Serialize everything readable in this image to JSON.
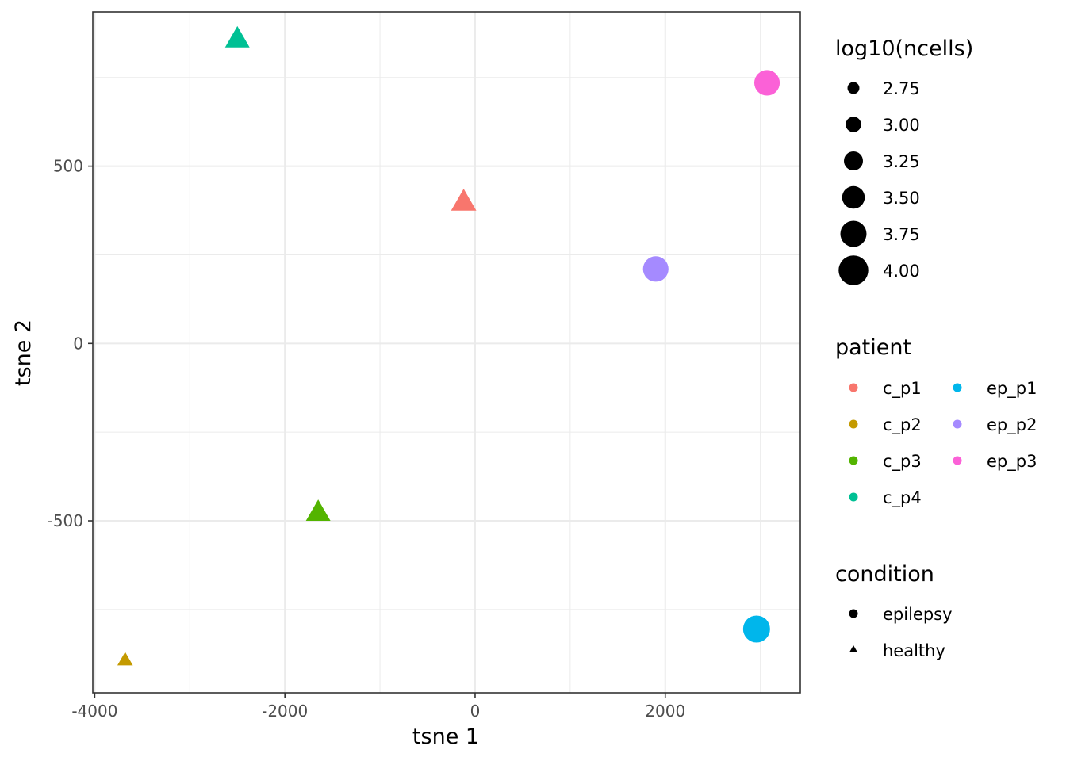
{
  "chart_data": {
    "type": "scatter",
    "xlabel": "tsne 1",
    "ylabel": "tsne 2",
    "xlim": [
      -4020,
      3420
    ],
    "ylim": [
      -985,
      935
    ],
    "x_ticks": [
      -4000,
      -2000,
      0,
      2000
    ],
    "x_tick_labels": [
      "-4000",
      "-2000",
      "0",
      "2000"
    ],
    "y_ticks": [
      -500,
      0,
      500
    ],
    "y_tick_labels": [
      "-500",
      "0",
      "500"
    ],
    "x_minor": [
      -3000,
      -1000,
      1000,
      3000
    ],
    "y_minor": [
      -750,
      -250,
      250,
      750
    ],
    "grid": true,
    "points": [
      {
        "patient": "c_p1",
        "condition": "healthy",
        "x": -120,
        "y": 395,
        "log10_ncells": 3.85
      },
      {
        "patient": "c_p2",
        "condition": "healthy",
        "x": -3680,
        "y": -895,
        "log10_ncells": 2.5
      },
      {
        "patient": "c_p3",
        "condition": "healthy",
        "x": -1650,
        "y": -480,
        "log10_ncells": 3.75
      },
      {
        "patient": "c_p4",
        "condition": "healthy",
        "x": -2500,
        "y": 855,
        "log10_ncells": 3.75
      },
      {
        "patient": "ep_p1",
        "condition": "epilepsy",
        "x": 2960,
        "y": -805,
        "log10_ncells": 3.9
      },
      {
        "patient": "ep_p2",
        "condition": "epilepsy",
        "x": 1900,
        "y": 210,
        "log10_ncells": 3.7
      },
      {
        "patient": "ep_p3",
        "condition": "epilepsy",
        "x": 3070,
        "y": 735,
        "log10_ncells": 3.7
      }
    ],
    "legend_placement": "right",
    "legends": {
      "size": {
        "title": "log10(ncells)",
        "entries": [
          {
            "label": "2.75",
            "value": 2.75
          },
          {
            "label": "3.00",
            "value": 3.0
          },
          {
            "label": "3.25",
            "value": 3.25
          },
          {
            "label": "3.50",
            "value": 3.5
          },
          {
            "label": "3.75",
            "value": 3.75
          },
          {
            "label": "4.00",
            "value": 4.0
          }
        ]
      },
      "patient": {
        "title": "patient",
        "entries": [
          {
            "label": "c_p1",
            "color": "#F8766D"
          },
          {
            "label": "c_p2",
            "color": "#C49A00"
          },
          {
            "label": "c_p3",
            "color": "#53B400"
          },
          {
            "label": "c_p4",
            "color": "#00C094"
          },
          {
            "label": "ep_p1",
            "color": "#00B6EB"
          },
          {
            "label": "ep_p2",
            "color": "#A58AFF"
          },
          {
            "label": "ep_p3",
            "color": "#FB61D7"
          }
        ]
      },
      "condition": {
        "title": "condition",
        "entries": [
          {
            "label": "epilepsy",
            "shape": "circle"
          },
          {
            "label": "healthy",
            "shape": "triangle"
          }
        ]
      }
    }
  }
}
